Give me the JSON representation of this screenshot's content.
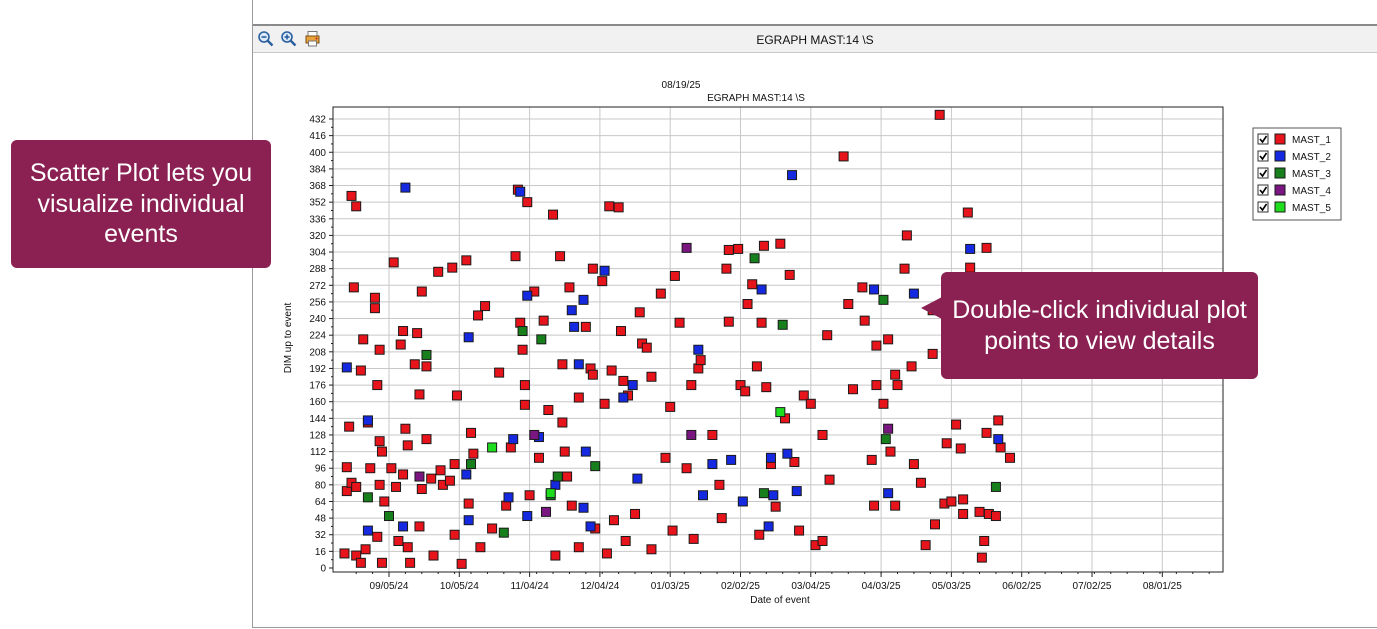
{
  "toolbar": {
    "title": "EGRAPH MAST:14 \\S",
    "buttons": [
      {
        "name": "zoom-out-icon"
      },
      {
        "name": "zoom-in-icon"
      },
      {
        "name": "print-icon"
      }
    ]
  },
  "callouts": {
    "scatter": "Scatter Plot lets you visualize individual events",
    "double_click": "Double-click individual plot points to view details"
  },
  "colors": {
    "callout_bg": "#8a2152",
    "MAST_1": "#e8141c",
    "MAST_2": "#1429e0",
    "MAST_3": "#17801c",
    "MAST_4": "#7a1680",
    "MAST_5": "#1edc1e"
  },
  "chart_data": {
    "type": "scatter",
    "date_label": "08/19/25",
    "title": "EGRAPH MAST:14 \\S",
    "xlabel": "Date of event",
    "ylabel": "DIM up to event",
    "x_ticks": [
      "09/05/24",
      "10/05/24",
      "11/04/24",
      "12/04/24",
      "01/03/25",
      "02/02/25",
      "03/04/25",
      "04/03/25",
      "05/03/25",
      "06/02/25",
      "07/02/25",
      "08/01/25"
    ],
    "xlim": [
      "2024-08-10",
      "2025-08-25"
    ],
    "ylim": [
      0,
      440
    ],
    "y_ticks": [
      0,
      16,
      32,
      48,
      64,
      80,
      96,
      112,
      128,
      144,
      160,
      176,
      192,
      208,
      224,
      240,
      256,
      272,
      288,
      304,
      320,
      336,
      352,
      368,
      384,
      400,
      416,
      432
    ],
    "grid": true,
    "legend_position": "right",
    "legend": [
      {
        "name": "MAST_1",
        "checked": true
      },
      {
        "name": "MAST_2",
        "checked": true
      },
      {
        "name": "MAST_3",
        "checked": true
      },
      {
        "name": "MAST_4",
        "checked": true
      },
      {
        "name": "MAST_5",
        "checked": true
      }
    ],
    "series": [
      {
        "name": "MAST_1",
        "points": [
          [
            "2024-08-20",
            358
          ],
          [
            "2024-08-22",
            348
          ],
          [
            "2024-08-21",
            270
          ],
          [
            "2024-08-19",
            136
          ],
          [
            "2024-08-18",
            97
          ],
          [
            "2024-08-18",
            74
          ],
          [
            "2024-08-20",
            82
          ],
          [
            "2024-08-22",
            78
          ],
          [
            "2024-08-17",
            14
          ],
          [
            "2024-08-22",
            12
          ],
          [
            "2024-08-24",
            5
          ],
          [
            "2024-08-26",
            18
          ],
          [
            "2024-08-25",
            220
          ],
          [
            "2024-08-24",
            190
          ],
          [
            "2024-08-27",
            140
          ],
          [
            "2024-08-28",
            96
          ],
          [
            "2024-08-30",
            260
          ],
          [
            "2024-08-30",
            250
          ],
          [
            "2024-09-01",
            210
          ],
          [
            "2024-08-31",
            176
          ],
          [
            "2024-09-01",
            122
          ],
          [
            "2024-09-02",
            112
          ],
          [
            "2024-09-01",
            80
          ],
          [
            "2024-09-03",
            64
          ],
          [
            "2024-08-31",
            30
          ],
          [
            "2024-09-02",
            5
          ],
          [
            "2024-09-07",
            294
          ],
          [
            "2024-09-06",
            96
          ],
          [
            "2024-09-08",
            78
          ],
          [
            "2024-09-10",
            215
          ],
          [
            "2024-09-11",
            228
          ],
          [
            "2024-09-12",
            134
          ],
          [
            "2024-09-13",
            118
          ],
          [
            "2024-09-11",
            90
          ],
          [
            "2024-09-09",
            26
          ],
          [
            "2024-09-13",
            20
          ],
          [
            "2024-09-14",
            5
          ],
          [
            "2024-09-16",
            196
          ],
          [
            "2024-09-18",
            167
          ],
          [
            "2024-09-17",
            226
          ],
          [
            "2024-09-19",
            266
          ],
          [
            "2024-09-19",
            76
          ],
          [
            "2024-09-18",
            40
          ],
          [
            "2024-09-21",
            194
          ],
          [
            "2024-09-21",
            124
          ],
          [
            "2024-09-23",
            86
          ],
          [
            "2024-09-24",
            12
          ],
          [
            "2024-09-26",
            285
          ],
          [
            "2024-09-27",
            94
          ],
          [
            "2024-09-28",
            80
          ],
          [
            "2024-10-01",
            84
          ],
          [
            "2024-10-03",
            100
          ],
          [
            "2024-10-02",
            289
          ],
          [
            "2024-10-04",
            166
          ],
          [
            "2024-10-03",
            32
          ],
          [
            "2024-10-06",
            4
          ],
          [
            "2024-10-08",
            296
          ],
          [
            "2024-10-10",
            130
          ],
          [
            "2024-10-11",
            110
          ],
          [
            "2024-10-09",
            62
          ],
          [
            "2024-10-13",
            243
          ],
          [
            "2024-10-16",
            252
          ],
          [
            "2024-10-14",
            20
          ],
          [
            "2024-10-19",
            38
          ],
          [
            "2024-10-22",
            188
          ],
          [
            "2024-10-25",
            60
          ],
          [
            "2024-10-27",
            116
          ],
          [
            "2024-10-29",
            300
          ],
          [
            "2024-10-30",
            364
          ],
          [
            "2024-10-31",
            236
          ],
          [
            "2024-11-01",
            210
          ],
          [
            "2024-11-02",
            176
          ],
          [
            "2024-11-02",
            157
          ],
          [
            "2024-11-03",
            352
          ],
          [
            "2024-11-04",
            70
          ],
          [
            "2024-11-06",
            266
          ],
          [
            "2024-11-08",
            106
          ],
          [
            "2024-11-10",
            238
          ],
          [
            "2024-11-12",
            152
          ],
          [
            "2024-11-14",
            340
          ],
          [
            "2024-11-15",
            12
          ],
          [
            "2024-11-17",
            300
          ],
          [
            "2024-11-18",
            196
          ],
          [
            "2024-11-18",
            140
          ],
          [
            "2024-11-19",
            112
          ],
          [
            "2024-11-20",
            88
          ],
          [
            "2024-11-21",
            270
          ],
          [
            "2024-11-22",
            60
          ],
          [
            "2024-11-25",
            164
          ],
          [
            "2024-11-25",
            20
          ],
          [
            "2024-11-28",
            232
          ],
          [
            "2024-11-30",
            192
          ],
          [
            "2024-12-01",
            288
          ],
          [
            "2024-12-01",
            186
          ],
          [
            "2024-12-02",
            38
          ],
          [
            "2024-12-05",
            276
          ],
          [
            "2024-12-06",
            158
          ],
          [
            "2024-12-07",
            14
          ],
          [
            "2024-12-08",
            348
          ],
          [
            "2024-12-09",
            190
          ],
          [
            "2024-12-10",
            46
          ],
          [
            "2024-12-12",
            347
          ],
          [
            "2024-12-13",
            228
          ],
          [
            "2024-12-14",
            180
          ],
          [
            "2024-12-15",
            26
          ],
          [
            "2024-12-16",
            166
          ],
          [
            "2024-12-19",
            52
          ],
          [
            "2024-12-21",
            246
          ],
          [
            "2024-12-22",
            216
          ],
          [
            "2024-12-24",
            212
          ],
          [
            "2024-12-26",
            184
          ],
          [
            "2024-12-26",
            18
          ],
          [
            "2024-12-30",
            264
          ],
          [
            "2025-01-01",
            106
          ],
          [
            "2025-01-03",
            155
          ],
          [
            "2025-01-04",
            36
          ],
          [
            "2025-01-05",
            281
          ],
          [
            "2025-01-07",
            236
          ],
          [
            "2025-01-10",
            96
          ],
          [
            "2025-01-12",
            176
          ],
          [
            "2025-01-13",
            28
          ],
          [
            "2025-01-15",
            192
          ],
          [
            "2025-01-16",
            200
          ],
          [
            "2025-01-21",
            128
          ],
          [
            "2025-01-24",
            80
          ],
          [
            "2025-01-25",
            48
          ],
          [
            "2025-01-27",
            288
          ],
          [
            "2025-01-28",
            306
          ],
          [
            "2025-01-28",
            237
          ],
          [
            "2025-02-01",
            307
          ],
          [
            "2025-02-02",
            176
          ],
          [
            "2025-02-04",
            170
          ],
          [
            "2025-02-05",
            254
          ],
          [
            "2025-02-07",
            273
          ],
          [
            "2025-02-09",
            194
          ],
          [
            "2025-02-10",
            32
          ],
          [
            "2025-02-11",
            236
          ],
          [
            "2025-02-12",
            310
          ],
          [
            "2025-02-13",
            174
          ],
          [
            "2025-02-15",
            100
          ],
          [
            "2025-02-17",
            59
          ],
          [
            "2025-02-19",
            312
          ],
          [
            "2025-02-21",
            144
          ],
          [
            "2025-02-23",
            282
          ],
          [
            "2025-02-25",
            102
          ],
          [
            "2025-02-27",
            36
          ],
          [
            "2025-03-01",
            166
          ],
          [
            "2025-03-04",
            158
          ],
          [
            "2025-03-06",
            22
          ],
          [
            "2025-03-09",
            128
          ],
          [
            "2025-03-09",
            26
          ],
          [
            "2025-03-11",
            224
          ],
          [
            "2025-03-12",
            85
          ],
          [
            "2025-03-18",
            396
          ],
          [
            "2025-03-20",
            254
          ],
          [
            "2025-03-22",
            172
          ],
          [
            "2025-03-26",
            270
          ],
          [
            "2025-03-27",
            238
          ],
          [
            "2025-03-30",
            104
          ],
          [
            "2025-03-31",
            60
          ],
          [
            "2025-04-01",
            214
          ],
          [
            "2025-04-01",
            176
          ],
          [
            "2025-04-04",
            158
          ],
          [
            "2025-04-06",
            220
          ],
          [
            "2025-04-07",
            112
          ],
          [
            "2025-04-09",
            186
          ],
          [
            "2025-04-09",
            60
          ],
          [
            "2025-04-10",
            176
          ],
          [
            "2025-04-13",
            288
          ],
          [
            "2025-04-14",
            320
          ],
          [
            "2025-04-16",
            194
          ],
          [
            "2025-04-17",
            100
          ],
          [
            "2025-04-20",
            82
          ],
          [
            "2025-04-22",
            22
          ],
          [
            "2025-04-25",
            248
          ],
          [
            "2025-04-25",
            206
          ],
          [
            "2025-04-26",
            42
          ],
          [
            "2025-04-28",
            436
          ],
          [
            "2025-04-30",
            62
          ],
          [
            "2025-05-01",
            120
          ],
          [
            "2025-05-03",
            64
          ],
          [
            "2025-05-04",
            254
          ],
          [
            "2025-05-05",
            138
          ],
          [
            "2025-05-07",
            115
          ],
          [
            "2025-05-08",
            66
          ],
          [
            "2025-05-08",
            52
          ],
          [
            "2025-05-10",
            342
          ],
          [
            "2025-05-11",
            289
          ],
          [
            "2025-05-12",
            200
          ],
          [
            "2025-05-15",
            54
          ],
          [
            "2025-05-16",
            10
          ],
          [
            "2025-05-17",
            26
          ],
          [
            "2025-05-18",
            130
          ],
          [
            "2025-05-18",
            308
          ],
          [
            "2025-05-19",
            52
          ],
          [
            "2025-05-22",
            50
          ],
          [
            "2025-05-23",
            142
          ],
          [
            "2025-05-24",
            116
          ],
          [
            "2025-05-28",
            106
          ]
        ]
      },
      {
        "name": "MAST_2",
        "points": [
          [
            "2024-08-18",
            193
          ],
          [
            "2024-08-27",
            142
          ],
          [
            "2024-09-12",
            366
          ],
          [
            "2024-09-11",
            40
          ],
          [
            "2024-08-27",
            36
          ],
          [
            "2024-10-09",
            222
          ],
          [
            "2024-10-08",
            90
          ],
          [
            "2024-10-09",
            46
          ],
          [
            "2024-10-26",
            68
          ],
          [
            "2024-10-28",
            124
          ],
          [
            "2024-10-31",
            362
          ],
          [
            "2024-11-03",
            262
          ],
          [
            "2024-11-08",
            126
          ],
          [
            "2024-11-03",
            50
          ],
          [
            "2024-11-15",
            80
          ],
          [
            "2024-11-22",
            248
          ],
          [
            "2024-11-23",
            232
          ],
          [
            "2024-11-25",
            196
          ],
          [
            "2024-11-27",
            258
          ],
          [
            "2024-11-28",
            112
          ],
          [
            "2024-11-30",
            40
          ],
          [
            "2024-11-27",
            58
          ],
          [
            "2024-12-06",
            286
          ],
          [
            "2024-12-14",
            164
          ],
          [
            "2024-12-18",
            176
          ],
          [
            "2024-12-20",
            86
          ],
          [
            "2025-01-15",
            210
          ],
          [
            "2025-01-17",
            70
          ],
          [
            "2025-01-21",
            100
          ],
          [
            "2025-01-29",
            104
          ],
          [
            "2025-02-03",
            64
          ],
          [
            "2025-02-11",
            268
          ],
          [
            "2025-02-14",
            40
          ],
          [
            "2025-02-15",
            106
          ],
          [
            "2025-02-16",
            70
          ],
          [
            "2025-02-22",
            110
          ],
          [
            "2025-02-24",
            378
          ],
          [
            "2025-02-26",
            74
          ],
          [
            "2025-03-31",
            268
          ],
          [
            "2025-04-06",
            72
          ],
          [
            "2025-04-17",
            264
          ],
          [
            "2025-05-11",
            307
          ],
          [
            "2025-05-23",
            124
          ]
        ]
      },
      {
        "name": "MAST_3",
        "points": [
          [
            "2024-08-27",
            68
          ],
          [
            "2024-09-05",
            50
          ],
          [
            "2024-09-21",
            205
          ],
          [
            "2024-10-10",
            100
          ],
          [
            "2024-10-24",
            34
          ],
          [
            "2024-11-01",
            228
          ],
          [
            "2024-11-09",
            220
          ],
          [
            "2024-11-13",
            70
          ],
          [
            "2024-11-16",
            88
          ],
          [
            "2024-12-02",
            98
          ],
          [
            "2025-02-08",
            298
          ],
          [
            "2025-02-12",
            72
          ],
          [
            "2025-02-20",
            234
          ],
          [
            "2025-04-04",
            258
          ],
          [
            "2025-04-05",
            124
          ],
          [
            "2025-05-22",
            78
          ]
        ]
      },
      {
        "name": "MAST_4",
        "points": [
          [
            "2024-09-18",
            88
          ],
          [
            "2024-11-06",
            128
          ],
          [
            "2024-11-11",
            54
          ],
          [
            "2025-01-10",
            308
          ],
          [
            "2025-01-12",
            128
          ],
          [
            "2025-04-06",
            134
          ]
        ]
      },
      {
        "name": "MAST_5",
        "points": [
          [
            "2024-10-19",
            116
          ],
          [
            "2024-11-13",
            72
          ],
          [
            "2025-02-19",
            150
          ]
        ]
      }
    ]
  }
}
